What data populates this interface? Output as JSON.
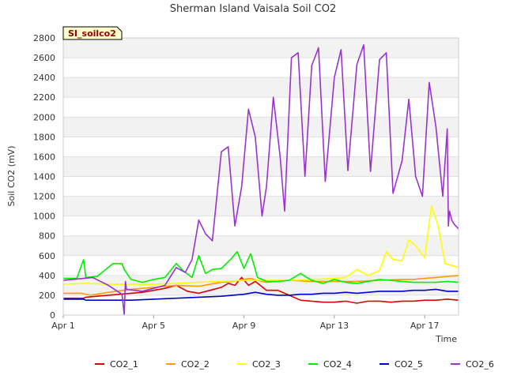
{
  "chart_data": {
    "type": "line",
    "title": "Sherman Island Vaisala Soil CO2",
    "xlabel": "Time",
    "ylabel": "Soil CO2 (mV)",
    "badge": "SI_soilco2",
    "xlim": [
      0,
      17.5
    ],
    "ylim": [
      0,
      2800
    ],
    "yticks": [
      0,
      200,
      400,
      600,
      800,
      1000,
      1200,
      1400,
      1600,
      1800,
      2000,
      2200,
      2400,
      2600,
      2800
    ],
    "ytick_labels": [
      "0",
      "200",
      "400",
      "600",
      "800",
      "1000",
      "1200",
      "1400",
      "1600",
      "1800",
      "2000",
      "2200",
      "2400",
      "2600",
      "2800"
    ],
    "xticks": [
      0,
      4,
      8,
      12,
      16
    ],
    "xtick_labels": [
      "Apr 1",
      "Apr 5",
      "Apr 9",
      "Apr 13",
      "Apr 17"
    ],
    "grid": "horizontal bands",
    "legend_position": "bottom",
    "series": [
      {
        "name": "CO2_1",
        "color": "#dd0000",
        "x": [
          0,
          0.9,
          1.0,
          2.5,
          3.5,
          4.0,
          4.5,
          5.0,
          5.5,
          6.0,
          6.5,
          7.0,
          7.3,
          7.6,
          7.9,
          8.2,
          8.5,
          9.0,
          9.5,
          10.0,
          10.5,
          11.0,
          11.5,
          12.0,
          12.5,
          13.0,
          13.5,
          14.0,
          14.5,
          15.0,
          15.5,
          16.0,
          16.5,
          17.0,
          17.5
        ],
        "y": [
          170,
          170,
          180,
          210,
          230,
          250,
          270,
          300,
          240,
          220,
          250,
          280,
          320,
          300,
          380,
          300,
          340,
          250,
          250,
          200,
          150,
          140,
          130,
          130,
          140,
          120,
          140,
          140,
          130,
          140,
          140,
          150,
          150,
          160,
          150
        ]
      },
      {
        "name": "CO2_2",
        "color": "#ff9900",
        "x": [
          0,
          0.8,
          1.2,
          2.0,
          3.0,
          4.0,
          5.0,
          6.0,
          6.5,
          7.0,
          7.5,
          8.0,
          8.3,
          8.6,
          9.0,
          10.0,
          11.0,
          12.0,
          13.0,
          14.0,
          15.0,
          15.5,
          16.0,
          16.5,
          17.0,
          17.5
        ],
        "y": [
          220,
          220,
          200,
          230,
          260,
          280,
          300,
          290,
          310,
          330,
          340,
          360,
          370,
          350,
          330,
          350,
          340,
          340,
          340,
          350,
          360,
          360,
          370,
          380,
          390,
          400
        ]
      },
      {
        "name": "CO2_3",
        "color": "#ffff00",
        "x": [
          0,
          1.0,
          2.0,
          3.0,
          4.0,
          5.0,
          6.0,
          7.0,
          8.0,
          9.0,
          10.0,
          11.0,
          12.0,
          12.5,
          13.0,
          13.5,
          14.0,
          14.3,
          14.6,
          15.0,
          15.3,
          15.6,
          16.0,
          16.3,
          16.6,
          16.9,
          17.2,
          17.5
        ],
        "y": [
          310,
          320,
          310,
          310,
          310,
          320,
          330,
          340,
          350,
          350,
          350,
          360,
          370,
          380,
          460,
          400,
          450,
          640,
          560,
          550,
          760,
          700,
          580,
          1100,
          900,
          520,
          500,
          480
        ]
      },
      {
        "name": "CO2_4",
        "color": "#00ee00",
        "x": [
          0,
          0.6,
          0.9,
          1.0,
          1.5,
          2.2,
          2.6,
          2.7,
          3.0,
          3.5,
          4.0,
          4.5,
          5.0,
          5.3,
          5.7,
          6.0,
          6.3,
          6.6,
          7.0,
          7.4,
          7.7,
          8.0,
          8.3,
          8.6,
          9.0,
          9.5,
          10.0,
          10.5,
          11.0,
          11.5,
          12.0,
          12.5,
          13.0,
          13.5,
          14.0,
          14.5,
          15.0,
          15.5,
          16.0,
          16.5,
          17.0,
          17.5
        ],
        "y": [
          370,
          370,
          560,
          380,
          390,
          520,
          520,
          460,
          360,
          330,
          360,
          380,
          520,
          450,
          380,
          600,
          420,
          460,
          470,
          560,
          640,
          470,
          620,
          380,
          340,
          340,
          350,
          420,
          350,
          320,
          360,
          330,
          320,
          340,
          360,
          350,
          340,
          330,
          330,
          330,
          340,
          330
        ]
      },
      {
        "name": "CO2_5",
        "color": "#0000cc",
        "x": [
          0,
          0.9,
          1.0,
          2.0,
          3.0,
          4.0,
          5.0,
          6.0,
          7.0,
          7.5,
          8.0,
          8.5,
          9.0,
          9.5,
          10.0,
          10.5,
          11.0,
          11.5,
          12.0,
          12.5,
          13.0,
          13.5,
          14.0,
          14.5,
          15.0,
          15.5,
          16.0,
          16.5,
          17.0,
          17.5
        ],
        "y": [
          160,
          160,
          150,
          150,
          150,
          160,
          170,
          180,
          190,
          200,
          210,
          230,
          210,
          200,
          200,
          210,
          210,
          220,
          220,
          230,
          220,
          230,
          240,
          240,
          240,
          250,
          250,
          260,
          240,
          240
        ]
      },
      {
        "name": "CO2_6",
        "color": "#9933cc",
        "x": [
          0,
          0.9,
          1.3,
          2.0,
          2.6,
          2.7,
          2.75,
          2.8,
          3.5,
          4.0,
          4.5,
          5.0,
          5.4,
          5.7,
          6.0,
          6.3,
          6.6,
          7.0,
          7.3,
          7.6,
          7.9,
          8.2,
          8.5,
          8.8,
          9.0,
          9.3,
          9.6,
          9.8,
          10.1,
          10.4,
          10.7,
          11.0,
          11.3,
          11.6,
          12.0,
          12.3,
          12.6,
          13.0,
          13.3,
          13.6,
          14.0,
          14.3,
          14.6,
          15.0,
          15.3,
          15.6,
          15.9,
          16.2,
          16.5,
          16.8,
          17.0,
          17.05,
          17.1,
          17.2,
          17.3,
          17.5
        ],
        "y": [
          350,
          370,
          380,
          300,
          210,
          5,
          340,
          260,
          240,
          270,
          300,
          480,
          430,
          560,
          960,
          820,
          750,
          1650,
          1700,
          900,
          1300,
          2080,
          1800,
          1000,
          1300,
          2200,
          1600,
          1050,
          2600,
          2650,
          1400,
          2520,
          2700,
          1350,
          2400,
          2680,
          1460,
          2530,
          2730,
          1450,
          2580,
          2650,
          1230,
          1560,
          2180,
          1400,
          1200,
          2350,
          1900,
          1200,
          1880,
          900,
          1050,
          960,
          920,
          870
        ]
      }
    ]
  }
}
